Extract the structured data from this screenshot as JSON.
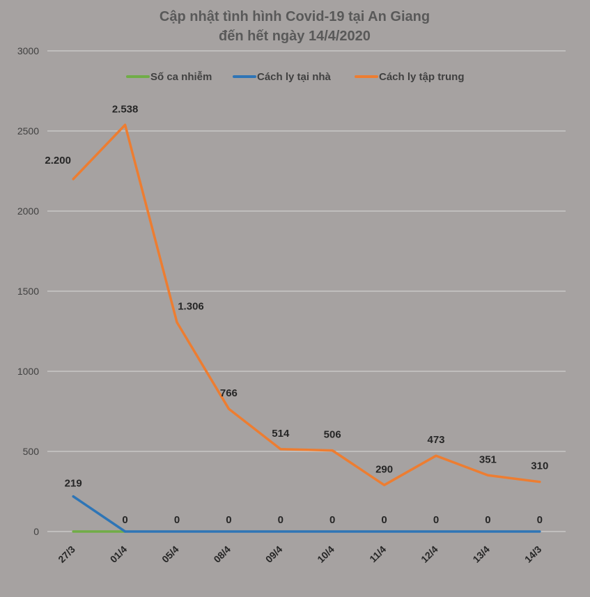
{
  "chart_data": {
    "type": "line",
    "title": "Cập nhật tình hình Covid-19  tại An Giang",
    "subtitle": "đến hết ngày 14/4/2020",
    "xlabel": "",
    "ylabel": "",
    "ylim": [
      0,
      3000
    ],
    "yticks": [
      0,
      500,
      1000,
      1500,
      2000,
      2500,
      3000
    ],
    "grid": true,
    "legend_position": "top",
    "categories": [
      "27/3",
      "01/4",
      "05/4",
      "08/4",
      "09/4",
      "10/4",
      "11/4",
      "12/4",
      "13/4",
      "14/3"
    ],
    "series": [
      {
        "name": "Số ca nhiễm",
        "color": "#70ad47",
        "values": [
          0,
          0,
          null,
          null,
          null,
          null,
          null,
          null,
          null,
          null
        ],
        "labels": []
      },
      {
        "name": "Cách ly tại nhà",
        "color": "#2e75b6",
        "values": [
          219,
          0,
          0,
          0,
          0,
          0,
          0,
          0,
          0,
          0
        ],
        "labels": [
          "219",
          "0",
          "0",
          "0",
          "0",
          "0",
          "0",
          "0",
          "0",
          "0"
        ]
      },
      {
        "name": "Cách ly tập trung",
        "color": "#ed7d31",
        "values": [
          2200,
          2538,
          1306,
          766,
          514,
          506,
          290,
          473,
          351,
          310
        ],
        "labels": [
          "2.200",
          "2.538",
          "1.306",
          "766",
          "514",
          "506",
          "290",
          "473",
          "351",
          "310"
        ]
      }
    ]
  }
}
